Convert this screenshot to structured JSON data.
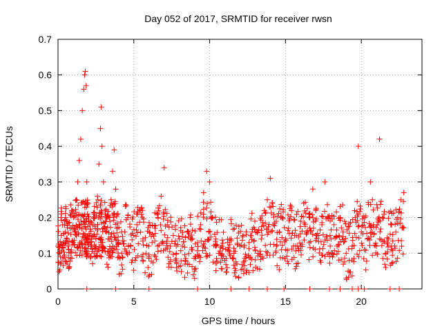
{
  "chart_data": {
    "type": "scatter",
    "title": "Day 052 of 2017, SRMTID for receiver rwsn",
    "xlabel": "GPS time / hours",
    "ylabel": "SRMTID / TECUs",
    "xlim": [
      0,
      24
    ],
    "ylim": [
      0,
      0.7
    ],
    "xticks": [
      0,
      5,
      10,
      15,
      20
    ],
    "xtick_labels": [
      "0",
      "5",
      "10",
      "15",
      "20"
    ],
    "yticks": [
      0,
      0.1,
      0.2,
      0.3,
      0.4,
      0.5,
      0.6,
      0.7
    ],
    "ytick_labels": [
      "0",
      "0.1",
      "0.2",
      "0.3",
      "0.4",
      "0.5",
      "0.6",
      "0.7"
    ],
    "grid": true,
    "marker": "+",
    "marker_color": "#ff0000",
    "series": [
      {
        "name": "SRMTID",
        "x": [
          0.0,
          0.1,
          0.2,
          0.3,
          0.4,
          0.5,
          0.6,
          0.7,
          0.8,
          0.9,
          1.0,
          1.1,
          1.2,
          1.3,
          1.4,
          1.5,
          1.6,
          1.7,
          1.75,
          1.8,
          1.85,
          1.9,
          1.95,
          2.0,
          2.1,
          2.2,
          2.3,
          2.4,
          2.5,
          2.6,
          2.7,
          2.8,
          2.85,
          2.9,
          3.0,
          3.1,
          3.2,
          3.3,
          3.4,
          3.5,
          3.6,
          3.7,
          3.8,
          3.9,
          4.0,
          4.2,
          4.4,
          4.6,
          4.8,
          5.0,
          5.2,
          5.4,
          5.6,
          5.8,
          6.0,
          6.2,
          6.4,
          6.6,
          6.8,
          7.0,
          7.2,
          7.4,
          7.6,
          7.8,
          8.0,
          8.2,
          8.4,
          8.6,
          8.8,
          9.0,
          9.2,
          9.4,
          9.6,
          9.8,
          10.0,
          10.2,
          10.4,
          10.6,
          10.8,
          11.0,
          11.2,
          11.4,
          11.6,
          11.8,
          12.0,
          12.2,
          12.4,
          12.6,
          12.8,
          13.0,
          13.2,
          13.4,
          13.6,
          13.8,
          14.0,
          14.2,
          14.4,
          14.6,
          14.8,
          15.0,
          15.2,
          15.4,
          15.6,
          15.8,
          16.0,
          16.2,
          16.4,
          16.6,
          16.8,
          17.0,
          17.2,
          17.4,
          17.6,
          17.8,
          18.0,
          18.2,
          18.4,
          18.6,
          18.8,
          19.0,
          19.2,
          19.4,
          19.6,
          19.8,
          20.0,
          20.2,
          20.4,
          20.6,
          20.8,
          21.0,
          21.2,
          21.4,
          21.6,
          21.8,
          22.0,
          22.2,
          22.4,
          22.6,
          22.8
        ],
        "y": [
          0.12,
          0.1,
          0.15,
          0.18,
          0.09,
          0.2,
          0.14,
          0.11,
          0.17,
          0.22,
          0.13,
          0.16,
          0.25,
          0.3,
          0.36,
          0.42,
          0.5,
          0.56,
          0.6,
          0.61,
          0.57,
          0.3,
          0.24,
          0.19,
          0.15,
          0.12,
          0.18,
          0.21,
          0.14,
          0.26,
          0.35,
          0.45,
          0.51,
          0.4,
          0.3,
          0.22,
          0.16,
          0.14,
          0.2,
          0.25,
          0.33,
          0.39,
          0.28,
          0.17,
          0.13,
          0.1,
          0.16,
          0.2,
          0.12,
          0.15,
          0.18,
          0.22,
          0.14,
          0.1,
          0.09,
          0.13,
          0.17,
          0.2,
          0.26,
          0.34,
          0.18,
          0.12,
          0.15,
          0.1,
          0.14,
          0.12,
          0.08,
          0.16,
          0.11,
          0.05,
          0.13,
          0.18,
          0.27,
          0.33,
          0.3,
          0.2,
          0.14,
          0.1,
          0.12,
          0.08,
          0.11,
          0.14,
          0.1,
          0.07,
          0.12,
          0.15,
          0.09,
          0.13,
          0.16,
          0.11,
          0.1,
          0.14,
          0.22,
          0.25,
          0.31,
          0.18,
          0.12,
          0.16,
          0.2,
          0.14,
          0.17,
          0.22,
          0.15,
          0.12,
          0.19,
          0.24,
          0.16,
          0.2,
          0.28,
          0.22,
          0.15,
          0.18,
          0.3,
          0.2,
          0.14,
          0.18,
          0.12,
          0.2,
          0.16,
          0.1,
          0.08,
          0.12,
          0.2,
          0.4,
          0.16,
          0.11,
          0.14,
          0.3,
          0.18,
          0.12,
          0.42,
          0.2,
          0.1,
          0.14,
          0.18,
          0.12,
          0.2,
          0.25,
          0.27
        ],
        "values_at_zero_x": [
          1.9,
          3.8,
          6.0,
          9.2,
          11.4,
          12.6,
          13.8,
          14.9,
          16.6,
          17.9,
          18.6,
          19.4,
          19.8,
          20.2,
          21.9,
          22.5
        ]
      }
    ]
  }
}
